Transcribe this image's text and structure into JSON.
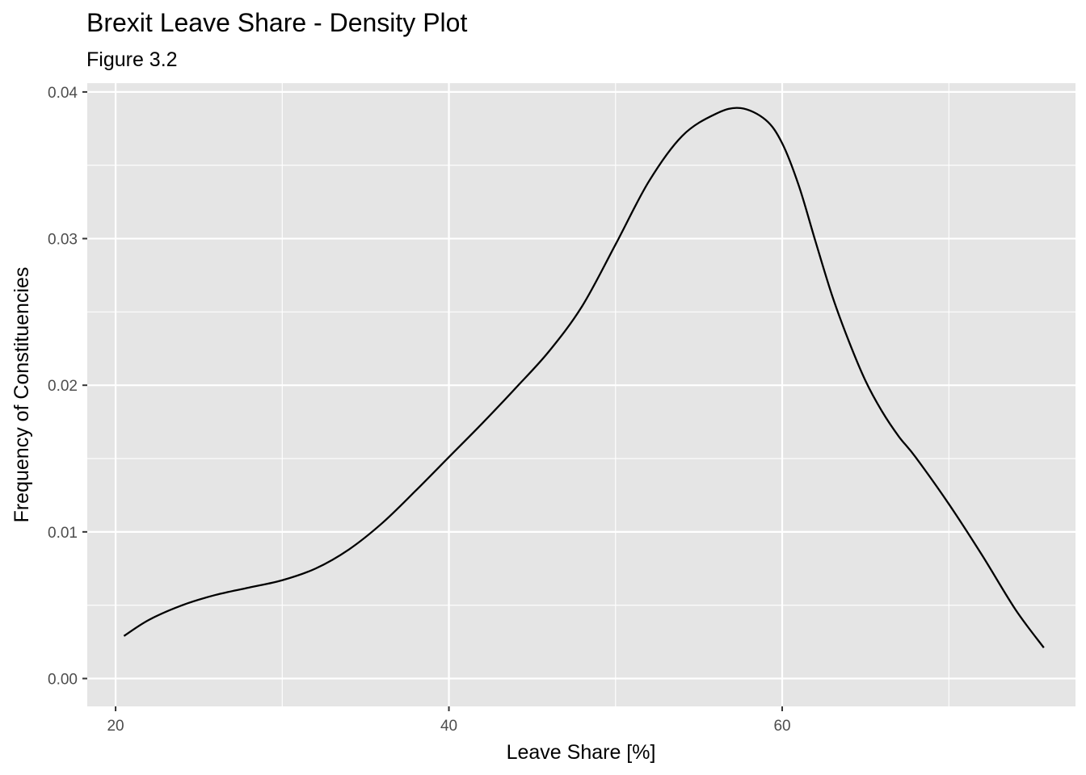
{
  "chart_data": {
    "type": "line",
    "title": "Brexit Leave Share - Density Plot",
    "subtitle": "Figure 3.2",
    "xlabel": "Leave Share [%]",
    "ylabel": "Frequency of Constituencies",
    "xlim": [
      18.3,
      77.6
    ],
    "ylim": [
      -0.0019,
      0.0406
    ],
    "x_ticks": [
      20,
      40,
      60
    ],
    "x_tick_labels": [
      "20",
      "40",
      "60"
    ],
    "x_minor_ticks": [
      30,
      50,
      70
    ],
    "y_ticks": [
      0,
      0.01,
      0.02,
      0.03,
      0.04
    ],
    "y_tick_labels": [
      "0.00",
      "0.01",
      "0.02",
      "0.03",
      "0.04"
    ],
    "y_minor_ticks": [
      0.005,
      0.015,
      0.025,
      0.035
    ],
    "grid": true,
    "panel_background": "#e5e5e5",
    "grid_color": "#ffffff",
    "line_color": "#000000",
    "series": [
      {
        "x": [
          20.5,
          22,
          24,
          26,
          28,
          30,
          32,
          34,
          36,
          38,
          40,
          42,
          44,
          46,
          48,
          50,
          52,
          54,
          56,
          57.5,
          59,
          60,
          61,
          62,
          63,
          64,
          65,
          66,
          67,
          68,
          70,
          72,
          74,
          75.7
        ],
        "y": [
          0.0029,
          0.004,
          0.005,
          0.0057,
          0.0062,
          0.0067,
          0.0075,
          0.0088,
          0.0106,
          0.0128,
          0.0151,
          0.0174,
          0.0198,
          0.0223,
          0.0254,
          0.0296,
          0.0339,
          0.037,
          0.0385,
          0.0389,
          0.0381,
          0.0365,
          0.0336,
          0.0298,
          0.0261,
          0.023,
          0.0203,
          0.0182,
          0.0165,
          0.0151,
          0.0119,
          0.0084,
          0.0047,
          0.0021
        ]
      }
    ]
  }
}
